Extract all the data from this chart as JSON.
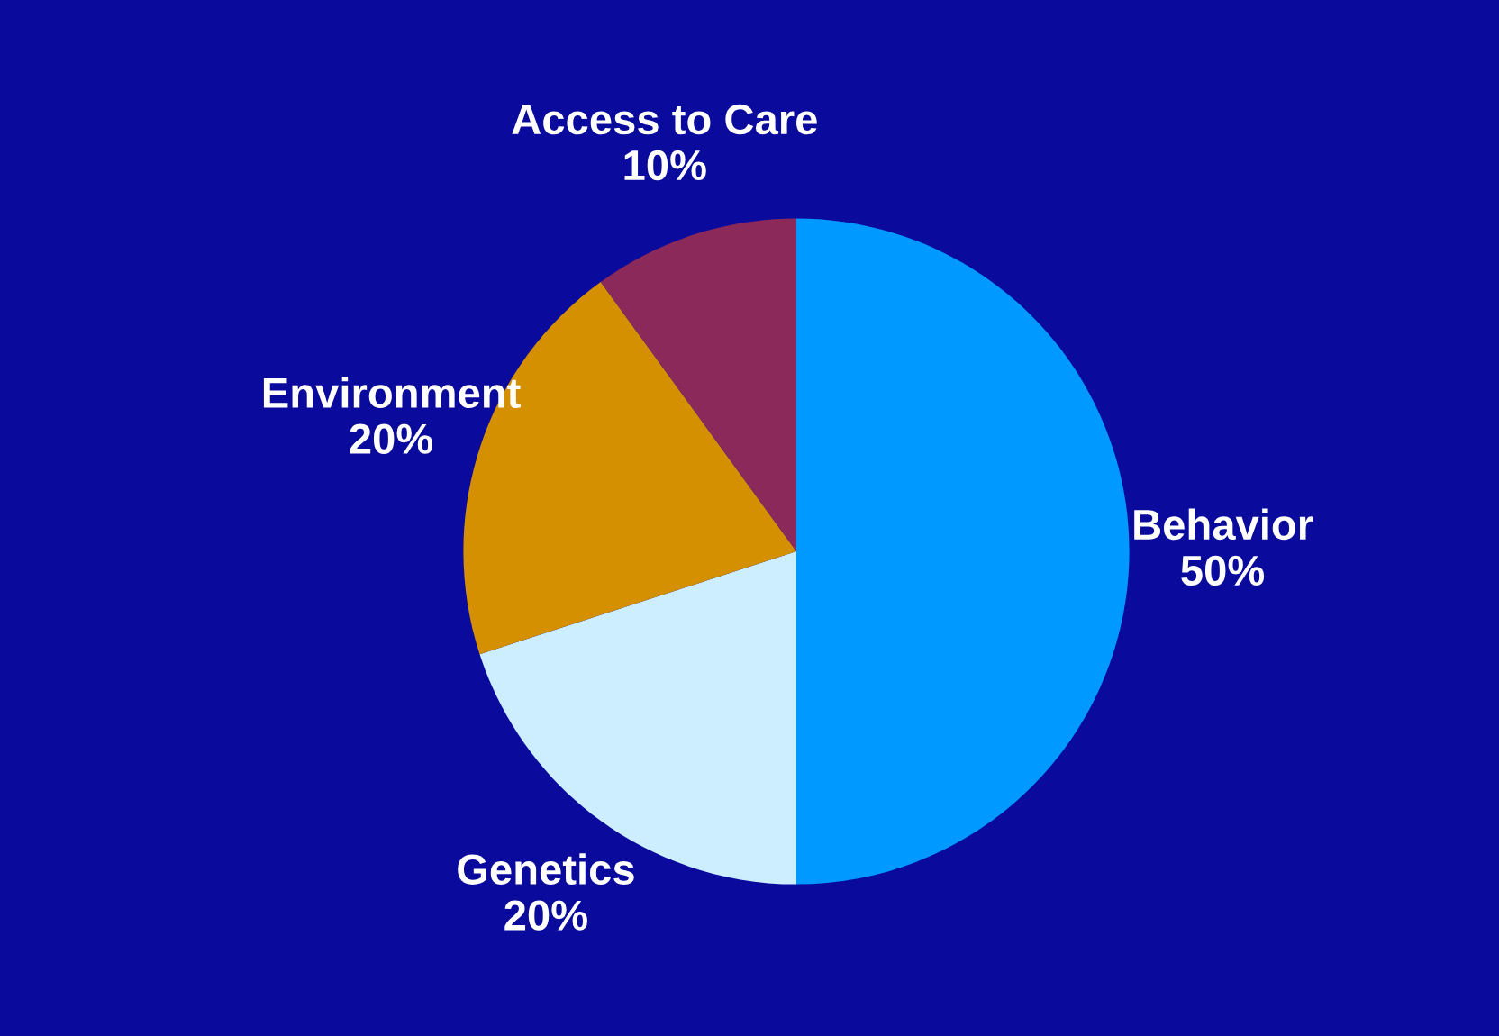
{
  "chart_data": {
    "type": "pie",
    "categories": [
      "Behavior",
      "Genetics",
      "Environment",
      "Access to Care"
    ],
    "values": [
      50,
      20,
      20,
      10
    ],
    "colors": [
      "#0099ff",
      "#cceeff",
      "#d49000",
      "#8b2a5a"
    ],
    "value_labels": [
      "50%",
      "20%",
      "20%",
      "10%"
    ]
  }
}
